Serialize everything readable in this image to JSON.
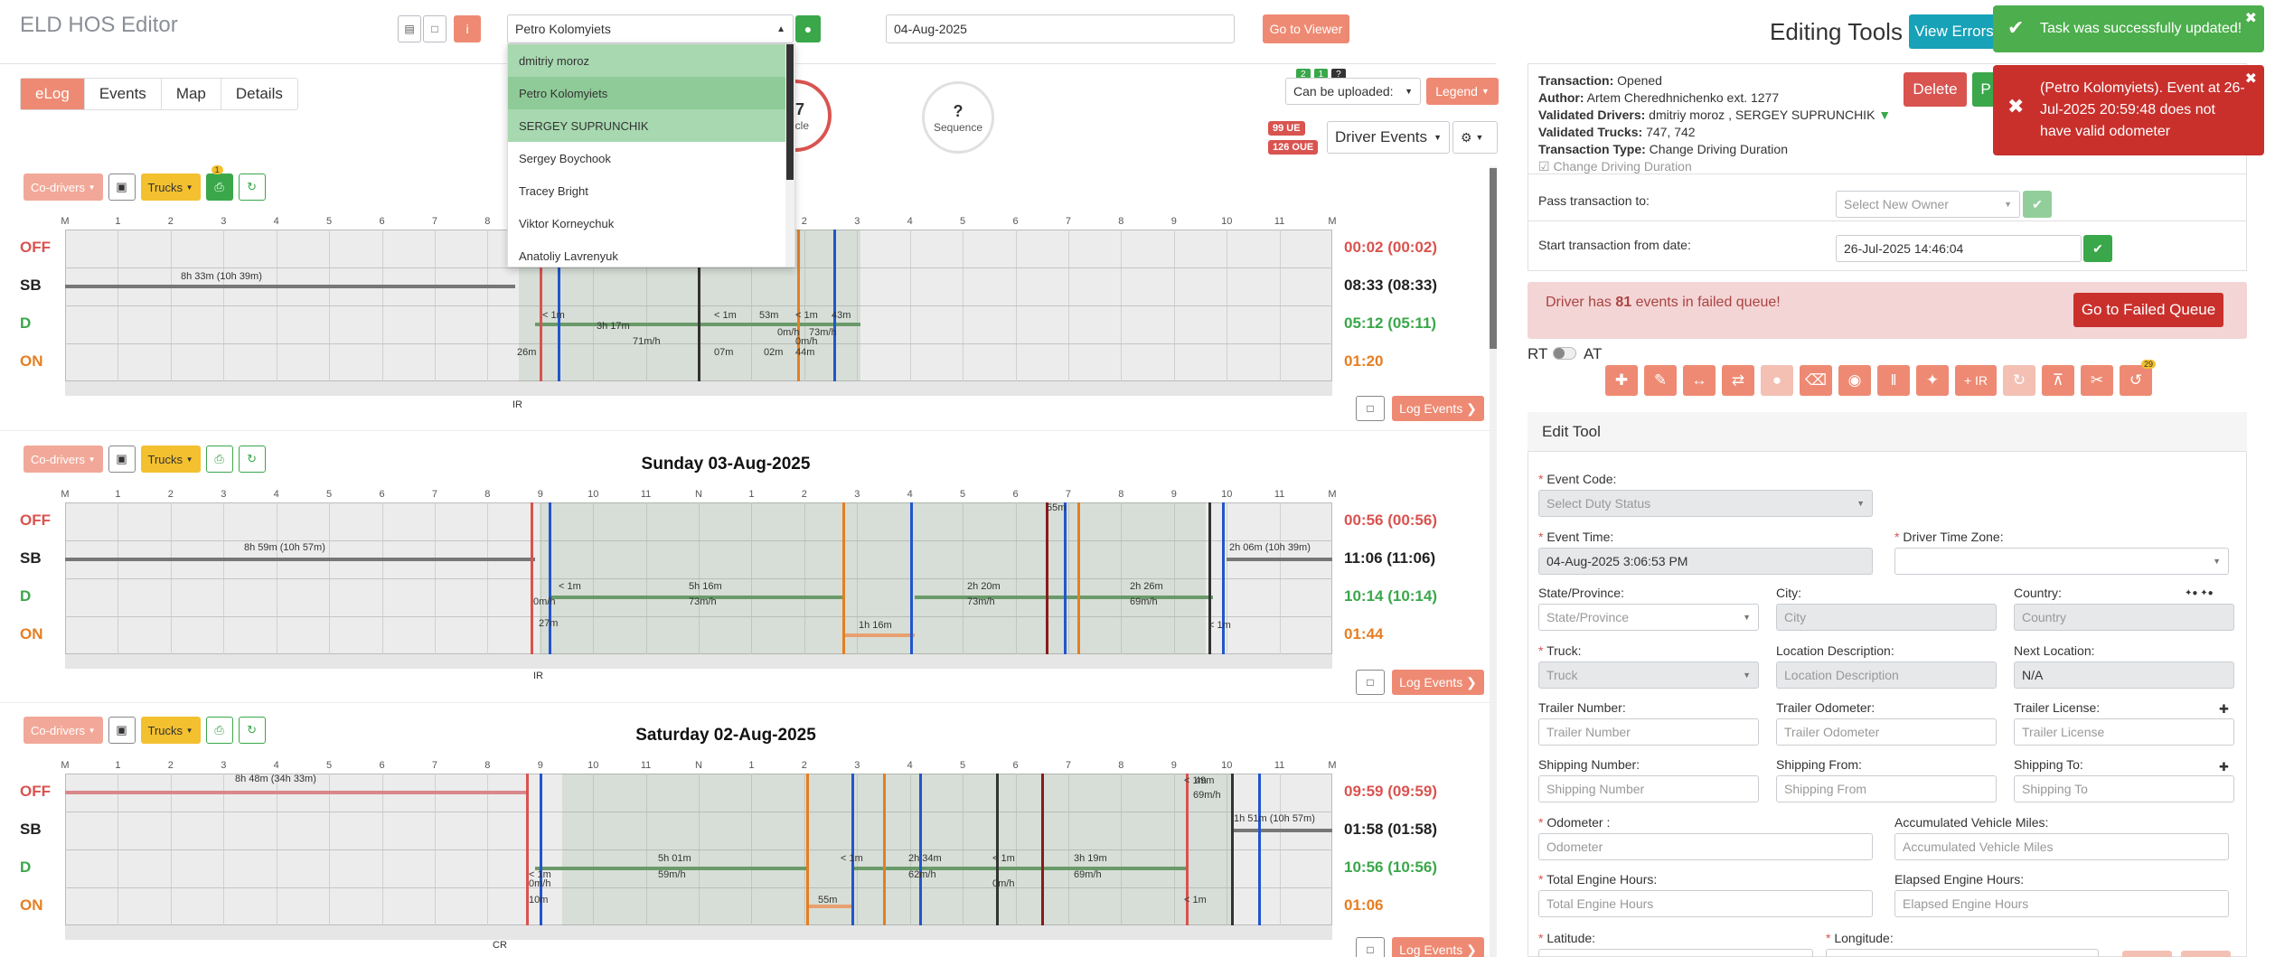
{
  "app": {
    "title": "ELD HOS Editor"
  },
  "header": {
    "driver_select": "Petro Kolomyiets",
    "date": "04-Aug-2025",
    "go_to_viewer": "Go to Viewer",
    "editing_tools": "Editing Tools",
    "view_errors": "View Errors",
    "driver_list": [
      "dmitriy moroz",
      "Petro Kolomyiets",
      "SERGEY SUPRUNCHIK",
      "Sergey Boychook",
      "Tracey Bright",
      "Viktor Korneychuk",
      "Anatoliy Lavrenyuk"
    ]
  },
  "tabs": [
    "eLog",
    "Events",
    "Map",
    "Details"
  ],
  "stats": {
    "cycle_value": "27",
    "cycle_label": "Cycle",
    "sequence_value": "?",
    "sequence_label": "Sequence",
    "can_upload": "Can be uploaded:",
    "legend": "Legend",
    "ue": "99 UE",
    "oue": "126 OUE",
    "driver_events": "Driver Events",
    "mini1": "2",
    "mini2": "1",
    "mini3": "?"
  },
  "controls": {
    "codrivers": "Co-drivers",
    "trucks": "Trucks",
    "print_badge": "1",
    "log_events": "Log Events"
  },
  "axis": [
    "M",
    "1",
    "2",
    "3",
    "4",
    "5",
    "6",
    "7",
    "8",
    "9",
    "10",
    "11",
    "N",
    "1",
    "2",
    "3",
    "4",
    "5",
    "6",
    "7",
    "8",
    "9",
    "10",
    "11",
    "M"
  ],
  "rows": [
    "OFF",
    "SB",
    "D",
    "ON"
  ],
  "logs": [
    {
      "title": "",
      "totals": [
        "00:02 (00:02)",
        "08:33 (08:33)",
        "05:12 (05:11)",
        "01:20"
      ],
      "labels": [
        "8h 33m (10h 39m)",
        "< 1m",
        "3h 17m",
        "71m/h",
        "< 1m",
        "53m",
        "< 1m",
        "0m/h",
        "73m/h",
        "0m/h",
        "43m",
        "26m",
        "07m",
        "02m",
        "44m",
        "IR"
      ]
    },
    {
      "title": "Sunday 03-Aug-2025",
      "totals": [
        "00:56 (00:56)",
        "11:06 (11:06)",
        "10:14 (10:14)",
        "01:44"
      ],
      "labels": [
        "8h 59m (10h 57m)",
        "< 1m",
        "0m/h",
        "5h 16m",
        "73m/h",
        "2h 20m",
        "73m/h",
        "2h 26m",
        "69m/h",
        "55m",
        "2h 06m (10h 39m)",
        "27m",
        "1h 16m",
        "< 1m",
        "IR"
      ]
    },
    {
      "title": "Saturday 02-Aug-2025",
      "totals": [
        "09:59 (09:59)",
        "01:58 (01:58)",
        "10:56 (10:56)",
        "01:06"
      ],
      "labels": [
        "8h 48m (34h 33m)",
        "< 1m",
        "0m/h",
        "5h 01m",
        "59m/h",
        "2h 34m",
        "62m/h",
        "< 1m",
        "0m/h",
        "3h 19m",
        "69m/h",
        "< 1m",
        "49m",
        "69m/h",
        "1h 51m (10h 57m)",
        "55m",
        "< 1m",
        "< 1m",
        "CR",
        "10m"
      ]
    }
  ],
  "transaction": {
    "transaction_label": "Transaction:",
    "transaction": "Opened",
    "author_label": "Author:",
    "author": "Artem Cheredhnichenko ext. 1277",
    "drivers_label": "Validated Drivers:",
    "drivers": "dmitriy moroz , SERGEY SUPRUNCHIK",
    "trucks_label": "Validated Trucks:",
    "trucks": "747, 742",
    "type_label": "Transaction Type:",
    "type": "Change Driving Duration",
    "checkbox": "Change Driving Duration",
    "delete": "Delete",
    "p_btn": "P",
    "pass_label": "Pass transaction to:",
    "pass_placeholder": "Select New Owner",
    "start_label": "Start transaction from date:",
    "start_value": "26-Jul-2025 14:46:04"
  },
  "failed": {
    "pre": "Driver has ",
    "count": "81",
    "post": " events in failed queue!",
    "button": "Go to Failed Queue"
  },
  "toggle": {
    "rt": "RT",
    "at": "AT",
    "ir_label": "+ IR",
    "badge": "29"
  },
  "edit": {
    "title": "Edit Tool",
    "event_code": "Event Code:",
    "event_code_ph": "Select Duty Status",
    "event_time": "Event Time:",
    "event_time_val": "04-Aug-2025 3:06:53 PM",
    "tz": "Driver Time Zone:",
    "state": "State/Province:",
    "state_ph": "State/Province",
    "city": "City:",
    "city_ph": "City",
    "country": "Country:",
    "country_ph": "Country",
    "truck": "Truck:",
    "truck_ph": "Truck",
    "locdesc": "Location Description:",
    "locdesc_ph": "Location Description",
    "nextloc": "Next Location:",
    "nextloc_val": "N/A",
    "trnum": "Trailer Number:",
    "trnum_ph": "Trailer Number",
    "trodo": "Trailer Odometer:",
    "trodo_ph": "Trailer Odometer",
    "trlic": "Trailer License:",
    "trlic_ph": "Trailer License",
    "shipnum": "Shipping Number:",
    "shipnum_ph": "Shipping Number",
    "shipfrom": "Shipping From:",
    "shipfrom_ph": "Shipping From",
    "shipto": "Shipping To:",
    "shipto_ph": "Shipping To",
    "odo": "Odometer :",
    "odo_ph": "Odometer",
    "avm": "Accumulated Vehicle Miles:",
    "avm_ph": "Accumulated Vehicle Miles",
    "teh": "Total Engine Hours:",
    "teh_ph": "Total Engine Hours",
    "eeh": "Elapsed Engine Hours:",
    "eeh_ph": "Elapsed Engine Hours",
    "lat": "Latitude:",
    "lon": "Longitude:"
  },
  "toasts": {
    "success": "Task was successfully updated!",
    "error": "(Petro Kolomyiets). Event at 26-Jul-2025 20:59:48 does not have valid odometer"
  },
  "colors": {
    "accent": "#ee8a73",
    "green": "#3aa74a",
    "off": "#d9534f",
    "sb": "#222222",
    "d": "#3aa74a",
    "on": "#e67e22"
  }
}
